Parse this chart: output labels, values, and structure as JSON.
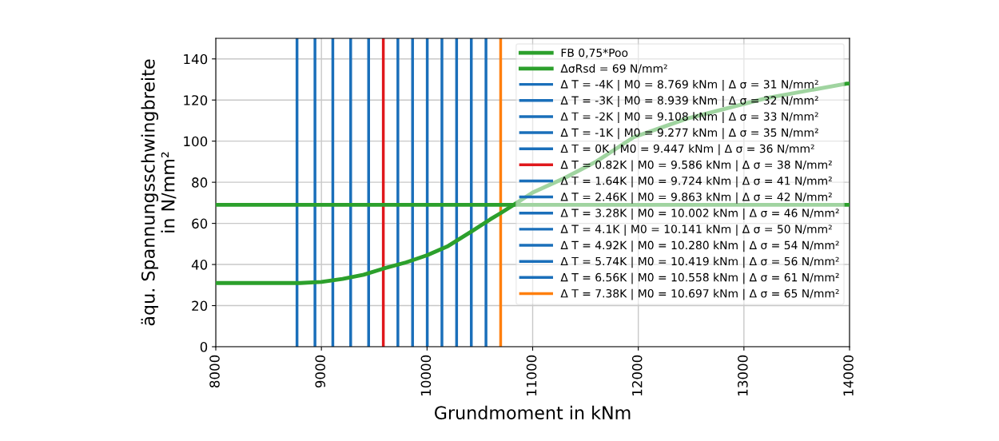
{
  "chart_data": {
    "type": "line",
    "xlabel": "Grundmoment in kNm",
    "ylabel": "äqu. Spannungsschwingbreite\nin N/mm²",
    "xlim": [
      8000,
      14000
    ],
    "xticks": [
      8000,
      9000,
      10000,
      11000,
      12000,
      13000,
      14000
    ],
    "ylim": [
      0,
      150
    ],
    "yticks": [
      0,
      20,
      40,
      60,
      80,
      100,
      120,
      140
    ],
    "grid": true,
    "legend": "top right",
    "series": [
      {
        "name": "FB 0,75*Poo",
        "color": "#2ca02c",
        "x": [
          8000,
          8500,
          8800,
          9000,
          9200,
          9400,
          9586,
          9800,
          10000,
          10200,
          10419,
          10600,
          10697,
          10850,
          11000,
          11300,
          11600,
          11956,
          12463,
          13220,
          13976,
          14000
        ],
        "values": [
          31,
          31,
          31,
          31.5,
          33,
          35,
          38,
          41,
          44.5,
          49,
          56,
          62,
          65,
          70,
          75,
          82,
          90,
          101.9,
          111,
          121,
          128,
          128
        ]
      },
      {
        "name": "ΔσRsd = 69 N/mm²",
        "color": "#2ca02c",
        "x": [
          8000,
          14000
        ],
        "values": [
          69,
          69
        ]
      },
      {
        "name": "Δ T = -4K | M0 = 8.769 kNm | Δ σ = 31 N/mm²",
        "color": "#1a6fba",
        "x": [
          8769,
          8769
        ],
        "values": [
          0,
          150
        ]
      },
      {
        "name": "Δ T = -3K | M0 = 8.939 kNm | Δ σ = 32 N/mm²",
        "color": "#1a6fba",
        "x": [
          8939,
          8939
        ],
        "values": [
          0,
          150
        ]
      },
      {
        "name": "Δ T = -2K | M0 = 9.108 kNm | Δ σ = 33 N/mm²",
        "color": "#1a6fba",
        "x": [
          9108,
          9108
        ],
        "values": [
          0,
          150
        ]
      },
      {
        "name": "Δ T = -1K | M0 = 9.277 kNm | Δ σ = 35 N/mm²",
        "color": "#1a6fba",
        "x": [
          9277,
          9277
        ],
        "values": [
          0,
          150
        ]
      },
      {
        "name": "Δ T = 0K | M0 = 9.447 kNm | Δ σ = 36 N/mm²",
        "color": "#1a6fba",
        "x": [
          9447,
          9447
        ],
        "values": [
          0,
          150
        ]
      },
      {
        "name": "Δ T = 0.82K | M0 = 9.586 kNm | Δ σ = 38 N/mm²",
        "color": "#e0181c",
        "x": [
          9586,
          9586
        ],
        "values": [
          0,
          150
        ]
      },
      {
        "name": "Δ T = 1.64K | M0 = 9.724 kNm | Δ σ = 41 N/mm²",
        "color": "#1a6fba",
        "x": [
          9724,
          9724
        ],
        "values": [
          0,
          150
        ]
      },
      {
        "name": "Δ T = 2.46K | M0 = 9.863 kNm | Δ σ = 42 N/mm²",
        "color": "#1a6fba",
        "x": [
          9863,
          9863
        ],
        "values": [
          0,
          150
        ]
      },
      {
        "name": "Δ T = 3.28K | M0 = 10.002 kNm | Δ σ = 46 N/mm²",
        "color": "#1a6fba",
        "x": [
          10002,
          10002
        ],
        "values": [
          0,
          150
        ]
      },
      {
        "name": "Δ T = 4.1K | M0 = 10.141 kNm | Δ σ = 50 N/mm²",
        "color": "#1a6fba",
        "x": [
          10141,
          10141
        ],
        "values": [
          0,
          150
        ]
      },
      {
        "name": "Δ T = 4.92K | M0 = 10.280 kNm | Δ σ = 54 N/mm²",
        "color": "#1a6fba",
        "x": [
          10280,
          10280
        ],
        "values": [
          0,
          150
        ]
      },
      {
        "name": "Δ T = 5.74K | M0 = 10.419 kNm | Δ σ = 56 N/mm²",
        "color": "#1a6fba",
        "x": [
          10419,
          10419
        ],
        "values": [
          0,
          150
        ]
      },
      {
        "name": "Δ T = 6.56K | M0 = 10.558 kNm | Δ σ = 61 N/mm²",
        "color": "#1a6fba",
        "x": [
          10558,
          10558
        ],
        "values": [
          0,
          150
        ]
      },
      {
        "name": "Δ T = 7.38K | M0 = 10.697 kNm | Δ σ = 65 N/mm²",
        "color": "#ff7f0e",
        "x": [
          10697,
          10697
        ],
        "values": [
          0,
          150
        ]
      }
    ]
  }
}
